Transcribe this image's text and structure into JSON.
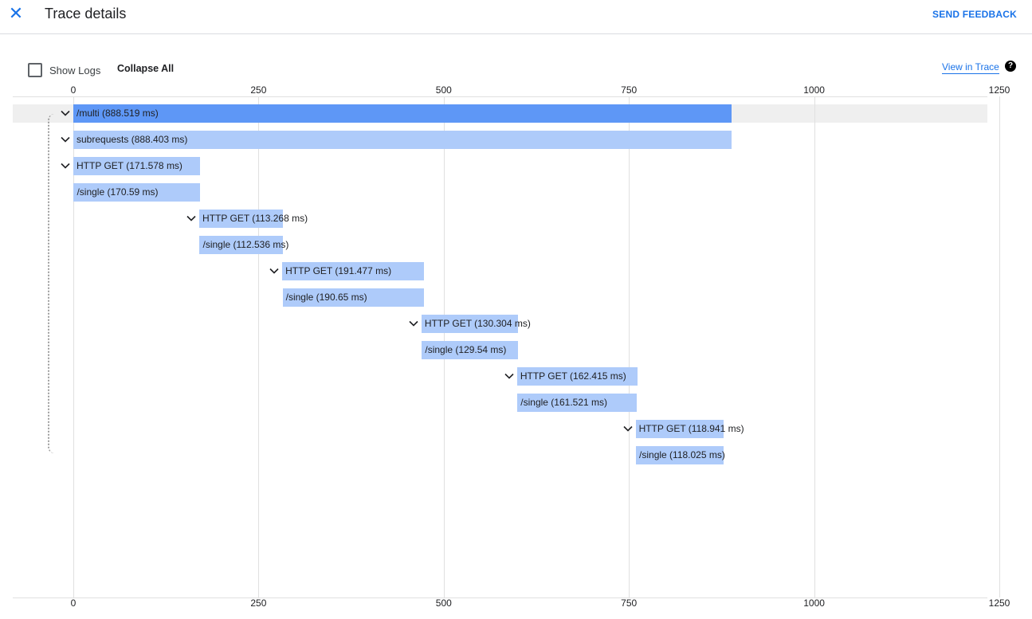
{
  "header": {
    "title": "Trace details",
    "feedback_label": "SEND FEEDBACK",
    "close_icon": "close-icon"
  },
  "toolbar": {
    "show_logs_label": "Show Logs",
    "show_logs_checked": false,
    "collapse_all_label": "Collapse All",
    "view_in_trace_label": "View in Trace",
    "help_icon": "help-icon"
  },
  "axis": {
    "ticks": [
      "0",
      "250",
      "500",
      "750",
      "1000",
      "1250"
    ],
    "min": 0,
    "max": 1250,
    "unit": "ms"
  },
  "colors": {
    "primary_bar": "#5e97f6",
    "bar": "#aecbfa",
    "accent": "#1a73e8"
  },
  "spans": [
    {
      "label": "/multi (888.519 ms)",
      "start_ms": 0,
      "duration_ms": 888.519,
      "expandable": true,
      "selected": true
    },
    {
      "label": "subrequests (888.403 ms)",
      "start_ms": 0,
      "duration_ms": 888.403,
      "expandable": true
    },
    {
      "label": "HTTP GET (171.578 ms)",
      "start_ms": 0,
      "duration_ms": 171.578,
      "expandable": true
    },
    {
      "label": "/single (170.59 ms)",
      "start_ms": 0.5,
      "duration_ms": 170.59,
      "expandable": false
    },
    {
      "label": "HTTP GET (113.268 ms)",
      "start_ms": 170,
      "duration_ms": 113.268,
      "expandable": true
    },
    {
      "label": "/single (112.536 ms)",
      "start_ms": 170.5,
      "duration_ms": 112.536,
      "expandable": false
    },
    {
      "label": "HTTP GET (191.477 ms)",
      "start_ms": 282,
      "duration_ms": 191.477,
      "expandable": true
    },
    {
      "label": "/single (190.65 ms)",
      "start_ms": 282.5,
      "duration_ms": 190.65,
      "expandable": false
    },
    {
      "label": "HTTP GET (130.304 ms)",
      "start_ms": 470,
      "duration_ms": 130.304,
      "expandable": true
    },
    {
      "label": "/single (129.54 ms)",
      "start_ms": 470.5,
      "duration_ms": 129.54,
      "expandable": false
    },
    {
      "label": "HTTP GET (162.415 ms)",
      "start_ms": 599,
      "duration_ms": 162.415,
      "expandable": true
    },
    {
      "label": "/single (161.521 ms)",
      "start_ms": 599.5,
      "duration_ms": 161.521,
      "expandable": false
    },
    {
      "label": "HTTP GET (118.941 ms)",
      "start_ms": 759,
      "duration_ms": 118.941,
      "expandable": true
    },
    {
      "label": "/single (118.025 ms)",
      "start_ms": 759.5,
      "duration_ms": 118.025,
      "expandable": false
    }
  ]
}
